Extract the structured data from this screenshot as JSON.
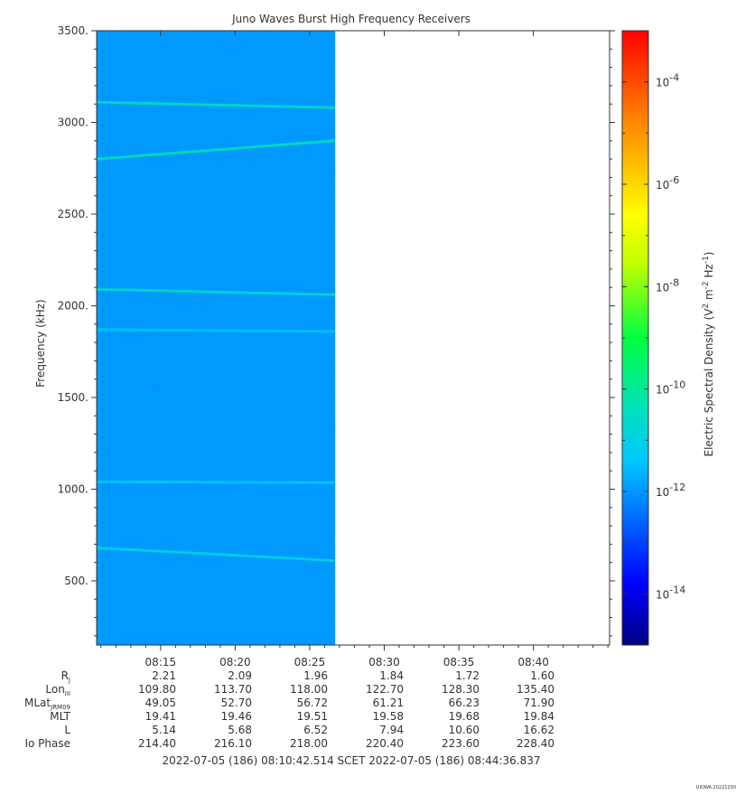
{
  "chart_data": {
    "type": "heatmap",
    "title": "Juno Waves Burst High Frequency Receivers",
    "ylabel": "Frequency (kHz)",
    "ylim": [
      150,
      3500
    ],
    "y_ticks": [
      "500.",
      "1000.",
      "1500.",
      "2000.",
      "2500.",
      "3000.",
      "3500."
    ],
    "y_tick_values": [
      500,
      1000,
      1500,
      2000,
      2500,
      3000,
      3500
    ],
    "x_range_minutes": [
      0,
      34.4
    ],
    "x_ticks": [
      "08:15",
      "08:20",
      "08:25",
      "08:30",
      "08:35",
      "08:40"
    ],
    "x_tick_minutes": [
      4.29,
      9.29,
      14.29,
      19.29,
      24.29,
      29.29
    ],
    "data_end_minutes": 16.0,
    "background_level_exp": -12,
    "bands": [
      {
        "y_start": 3110,
        "y_end": 3080,
        "level_exp": -10.5
      },
      {
        "y_start": 2800,
        "y_end": 2900,
        "level_exp": -10.3
      },
      {
        "y_start": 2090,
        "y_end": 2060,
        "level_exp": -10.6
      },
      {
        "y_start": 1870,
        "y_end": 1860,
        "level_exp": -11.4
      },
      {
        "y_start": 1040,
        "y_end": 1035,
        "level_exp": -11.3
      },
      {
        "y_start": 680,
        "y_end": 610,
        "level_exp": -10.9
      }
    ],
    "colorbar": {
      "label_main": "Electric Spectral Density (V",
      "label_sup1": "2",
      "label_mid1": " m",
      "label_sup2": "-2",
      "label_mid2": " Hz",
      "label_sup3": "-1",
      "label_end": ")",
      "range_exp": [
        -15,
        -3
      ],
      "ticks": [
        {
          "base": "10",
          "exp": "-4",
          "value_exp": -4
        },
        {
          "base": "10",
          "exp": "-6",
          "value_exp": -6
        },
        {
          "base": "10",
          "exp": "-8",
          "value_exp": -8
        },
        {
          "base": "10",
          "exp": "-10",
          "value_exp": -10
        },
        {
          "base": "10",
          "exp": "-12",
          "value_exp": -12
        },
        {
          "base": "10",
          "exp": "-14",
          "value_exp": -14
        }
      ]
    },
    "ephemeris": {
      "labels": [
        {
          "main": "R",
          "sub": "J"
        },
        {
          "main": "Lon",
          "sub": "III"
        },
        {
          "main": "MLat",
          "sub": "JRM09"
        },
        {
          "main": "MLT",
          "sub": ""
        },
        {
          "main": "L",
          "sub": ""
        },
        {
          "main": "Io Phase",
          "sub": ""
        }
      ],
      "columns": [
        [
          "2.21",
          "109.80",
          "49.05",
          "19.41",
          "5.14",
          "214.40"
        ],
        [
          "2.09",
          "113.70",
          "52.70",
          "19.46",
          "5.68",
          "216.10"
        ],
        [
          "1.96",
          "118.00",
          "56.72",
          "19.51",
          "6.52",
          "218.00"
        ],
        [
          "1.84",
          "122.70",
          "61.21",
          "19.58",
          "7.94",
          "220.40"
        ],
        [
          "1.72",
          "128.30",
          "66.23",
          "19.68",
          "10.60",
          "223.60"
        ],
        [
          "1.60",
          "135.40",
          "71.90",
          "19.84",
          "16.62",
          "228.40"
        ]
      ]
    },
    "time_range_text": "2022-07-05 (186) 08:10:42.514    SCET    2022-07-05 (186) 08:44:36.837",
    "footer_tag": "UIOWA 20221030"
  }
}
